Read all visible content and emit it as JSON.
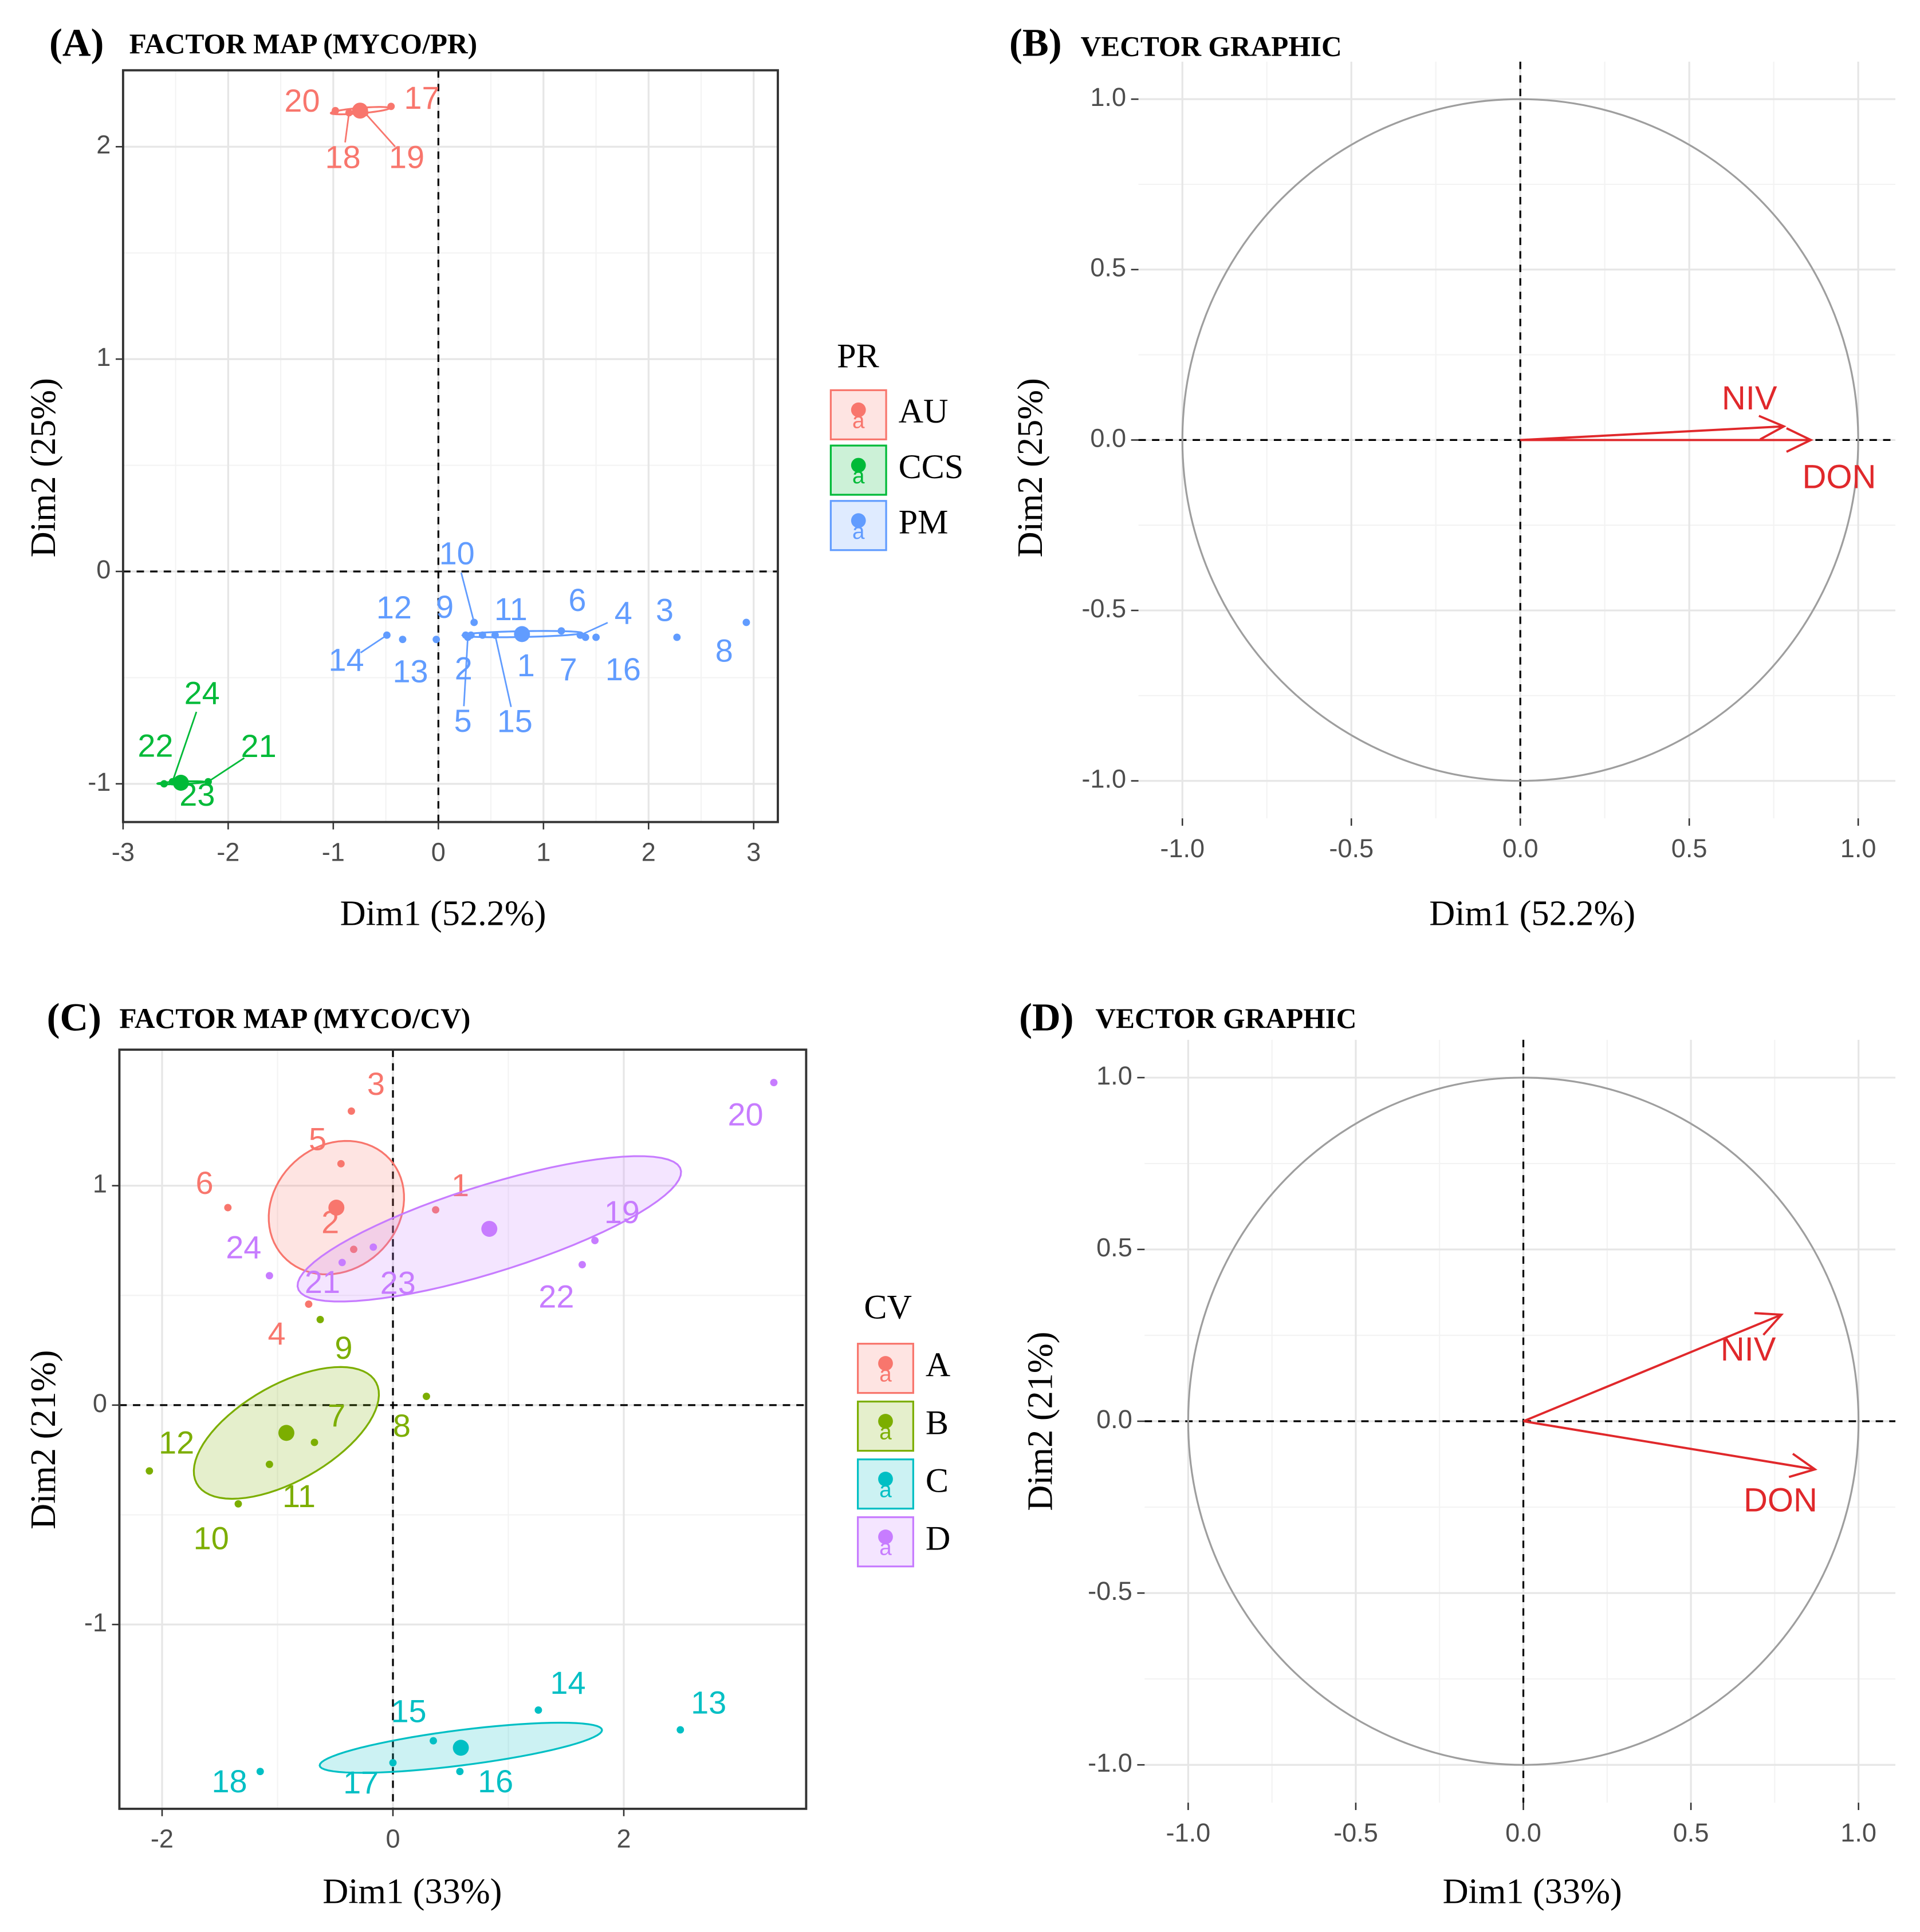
{
  "chart_data": [
    {
      "type": "scatter",
      "panel_label": "(A)",
      "title": "FACTOR MAP (MYCO/PR)",
      "x_label": "Dim1 (52.2%)",
      "y_label": "Dim2 (25%)",
      "legend_title": "PR",
      "xlim": [
        -3.0,
        3.23
      ],
      "ylim": [
        -1.18,
        2.36
      ],
      "xticks": [
        -3,
        -2,
        -1,
        0,
        1,
        2,
        3
      ],
      "yticks": [
        -1,
        0,
        1,
        2
      ],
      "grid": true,
      "ellipse_fill": false,
      "legend": "right",
      "series": [
        {
          "name": "AU",
          "color": "#F8766D",
          "labels": [
            "17",
            "18",
            "19",
            "20"
          ],
          "x": [
            -0.45,
            -0.85,
            -0.7,
            -0.98
          ],
          "values": [
            2.19,
            2.16,
            2.16,
            2.17
          ]
        },
        {
          "name": "CCS",
          "color": "#00BA38",
          "labels": [
            "21",
            "22",
            "23",
            "24"
          ],
          "x": [
            -2.19,
            -2.61,
            -2.47,
            -2.53
          ],
          "values": [
            -0.99,
            -1.0,
            -1.0,
            -0.99
          ]
        },
        {
          "name": "PM",
          "color": "#619CFF",
          "labels": [
            "1",
            "2",
            "3",
            "4",
            "5",
            "6",
            "7",
            "8",
            "9",
            "10",
            "11",
            "12",
            "13",
            "14",
            "15",
            "16"
          ],
          "x": [
            0.81,
            0.31,
            2.27,
            1.35,
            0.28,
            1.17,
            1.4,
            2.93,
            0.26,
            0.34,
            0.42,
            -0.34,
            -0.02,
            -0.49,
            0.54,
            1.5
          ],
          "values": [
            -0.28,
            -0.3,
            -0.31,
            -0.3,
            -0.31,
            -0.28,
            -0.31,
            -0.24,
            -0.3,
            -0.24,
            -0.3,
            -0.32,
            -0.32,
            -0.3,
            -0.3,
            -0.31
          ]
        }
      ]
    },
    {
      "type": "vector",
      "panel_label": "(B)",
      "title": "VECTOR GRAPHIC",
      "x_label": "Dim1 (52.2%)",
      "y_label": "Dim2 (25%)",
      "xlim": [
        -1.13,
        1.11
      ],
      "ylim": [
        -1.11,
        1.11
      ],
      "xticks": [
        {
          "value": -1,
          "label": "-1.0"
        },
        {
          "value": -0.5,
          "label": "-0.5"
        },
        {
          "value": 0,
          "label": "0.0"
        },
        {
          "value": 0.5,
          "label": "0.5"
        },
        {
          "value": 1,
          "label": "1.0"
        }
      ],
      "yticks": [
        {
          "value": -1,
          "label": "-1.0"
        },
        {
          "value": -0.5,
          "label": "-0.5"
        },
        {
          "value": 0,
          "label": "0.0"
        },
        {
          "value": 0.5,
          "label": "0.5"
        },
        {
          "value": 1,
          "label": "1.0"
        }
      ],
      "grid": true,
      "color": "#E0282B",
      "categories": [
        "NIV",
        "DON"
      ],
      "x": [
        0.78,
        0.86
      ],
      "values": [
        0.04,
        0.0
      ]
    },
    {
      "type": "scatter",
      "panel_label": "(C)",
      "title": "FACTOR MAP (MYCO/CV)",
      "x_label": "Dim1 (33%)",
      "y_label": "Dim2 (21%)",
      "legend_title": "CV",
      "xlim": [
        -2.37,
        3.58
      ],
      "ylim": [
        -1.84,
        1.62
      ],
      "xticks": [
        -2,
        0,
        2
      ],
      "yticks": [
        -1,
        0,
        1
      ],
      "grid": true,
      "ellipse_fill": true,
      "legend": "right",
      "series": [
        {
          "name": "A",
          "color": "#F8766D",
          "labels": [
            "1",
            "2",
            "3",
            "4",
            "5",
            "6"
          ],
          "x": [
            0.37,
            -0.34,
            -0.36,
            -0.73,
            -0.45,
            -1.43
          ],
          "values": [
            0.89,
            0.71,
            1.34,
            0.46,
            1.1,
            0.9
          ]
        },
        {
          "name": "B",
          "color": "#7CAE00",
          "labels": [
            "7",
            "8",
            "9",
            "10",
            "11",
            "12"
          ],
          "x": [
            -0.68,
            0.29,
            -0.63,
            -1.34,
            -1.07,
            -2.11
          ],
          "values": [
            -0.17,
            0.04,
            0.39,
            -0.45,
            -0.27,
            -0.3
          ]
        },
        {
          "name": "C",
          "color": "#00BFC4",
          "labels": [
            "13",
            "14",
            "15",
            "16",
            "17",
            "18"
          ],
          "x": [
            2.49,
            1.26,
            0.35,
            0.58,
            0,
            -1.15
          ],
          "values": [
            -1.48,
            -1.39,
            -1.53,
            -1.67,
            -1.63,
            -1.67
          ]
        },
        {
          "name": "D",
          "color": "#C77CFF",
          "labels": [
            "19",
            "20",
            "21",
            "22",
            "23",
            "24"
          ],
          "x": [
            1.75,
            3.3,
            -0.44,
            1.64,
            -0.17,
            -1.07
          ],
          "values": [
            0.75,
            1.47,
            0.65,
            0.64,
            0.72,
            0.59
          ]
        }
      ]
    },
    {
      "type": "vector",
      "panel_label": "(D)",
      "title": "VECTOR GRAPHIC",
      "x_label": "Dim1 (33%)",
      "y_label": "Dim2 (21%)",
      "xlim": [
        -1.13,
        1.11
      ],
      "ylim": [
        -1.11,
        1.11
      ],
      "xticks": [
        {
          "value": -1,
          "label": "-1.0"
        },
        {
          "value": -0.5,
          "label": "-0.5"
        },
        {
          "value": 0,
          "label": "0.0"
        },
        {
          "value": 0.5,
          "label": "0.5"
        },
        {
          "value": 1,
          "label": "1.0"
        }
      ],
      "yticks": [
        {
          "value": -1,
          "label": "-1.0"
        },
        {
          "value": -0.5,
          "label": "-0.5"
        },
        {
          "value": 0,
          "label": "0.0"
        },
        {
          "value": 0.5,
          "label": "0.5"
        },
        {
          "value": 1,
          "label": "1.0"
        }
      ],
      "grid": true,
      "color": "#E0282B",
      "categories": [
        "NIV",
        "DON"
      ],
      "x": [
        0.77,
        0.87
      ],
      "values": [
        0.31,
        -0.14
      ]
    }
  ]
}
